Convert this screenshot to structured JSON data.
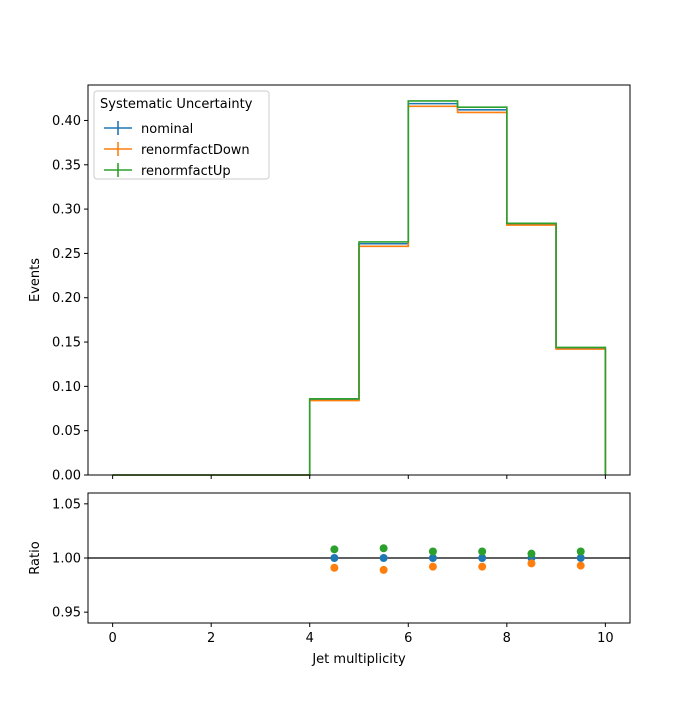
{
  "chart_data": [
    {
      "type": "line",
      "subtype": "step-histogram",
      "ylabel": "Events",
      "xlabel": "",
      "xlim": [
        -0.5,
        10.5
      ],
      "ylim": [
        0,
        0.44
      ],
      "bin_edges": [
        0,
        1,
        2,
        3,
        4,
        5,
        6,
        7,
        8,
        9,
        10
      ],
      "xticks": [
        "0",
        "2",
        "4",
        "6",
        "8",
        "10"
      ],
      "yticks": [
        "0.00",
        "0.05",
        "0.10",
        "0.15",
        "0.20",
        "0.25",
        "0.30",
        "0.35",
        "0.40"
      ],
      "legend": {
        "title": "Systematic Uncertainty",
        "position": "top-left"
      },
      "series": [
        {
          "name": "nominal",
          "color": "#1f77b4",
          "values": [
            0,
            0,
            0,
            0,
            0.085,
            0.261,
            0.419,
            0.412,
            0.283,
            0.143
          ]
        },
        {
          "name": "renormfactDown",
          "color": "#ff7f0e",
          "values": [
            0,
            0,
            0,
            0,
            0.084,
            0.258,
            0.416,
            0.409,
            0.282,
            0.142
          ]
        },
        {
          "name": "renormfactUp",
          "color": "#2ca02c",
          "values": [
            0,
            0,
            0,
            0,
            0.086,
            0.263,
            0.422,
            0.415,
            0.284,
            0.144
          ]
        }
      ]
    },
    {
      "type": "scatter",
      "ylabel": "Ratio",
      "xlabel": "Jet multiplicity",
      "xlim": [
        -0.5,
        10.5
      ],
      "ylim": [
        0.94,
        1.06
      ],
      "reference_line": 1.0,
      "xticks": [
        "0",
        "2",
        "4",
        "6",
        "8",
        "10"
      ],
      "yticks": [
        "0.95",
        "1.00",
        "1.05"
      ],
      "x": [
        4.5,
        5.5,
        6.5,
        7.5,
        8.5,
        9.5
      ],
      "series": [
        {
          "name": "nominal",
          "color": "#1f77b4",
          "values": [
            1.0,
            1.0,
            1.0,
            1.0,
            1.0,
            1.0
          ]
        },
        {
          "name": "renormfactDown",
          "color": "#ff7f0e",
          "values": [
            0.991,
            0.989,
            0.992,
            0.992,
            0.995,
            0.993
          ]
        },
        {
          "name": "renormfactUp",
          "color": "#2ca02c",
          "values": [
            1.008,
            1.009,
            1.006,
            1.006,
            1.004,
            1.006
          ]
        }
      ]
    }
  ]
}
